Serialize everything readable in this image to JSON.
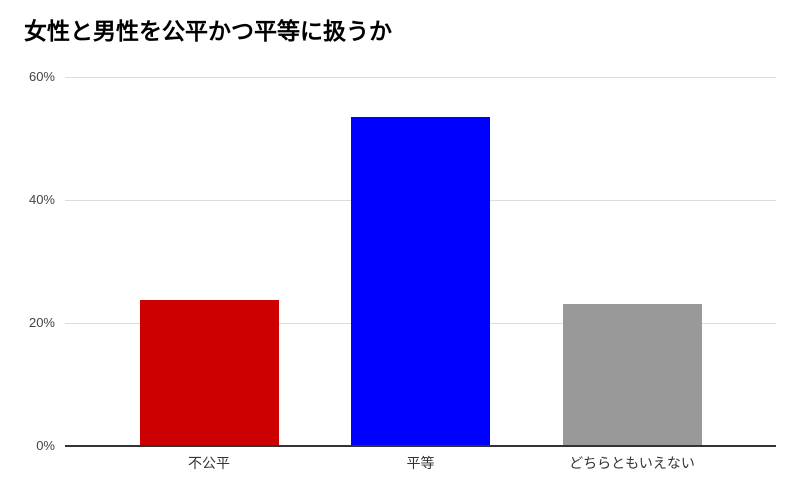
{
  "chart_data": {
    "type": "bar",
    "title": "女性と男性を公平かつ平等に扱うか",
    "categories": [
      "不公平",
      "平等",
      "どちらともいえない"
    ],
    "values": [
      23.7,
      53.5,
      23.1
    ],
    "bar_colors": [
      "#cc0000",
      "#0000ff",
      "#999999"
    ],
    "xlabel": "",
    "ylabel": "",
    "ylim": [
      0,
      60
    ],
    "yticks": [
      0,
      20,
      40,
      60
    ],
    "ytick_labels": [
      "0%",
      "20%",
      "40%",
      "60%"
    ],
    "grid": "horizontal-only",
    "legend": "none",
    "background_color": "#ffffff",
    "gridline_color": "#dcdcdc",
    "axis_line_color": "#333333",
    "tick_label_color": "#444444",
    "category_label_color": "#333333",
    "title_color": "#000000"
  }
}
